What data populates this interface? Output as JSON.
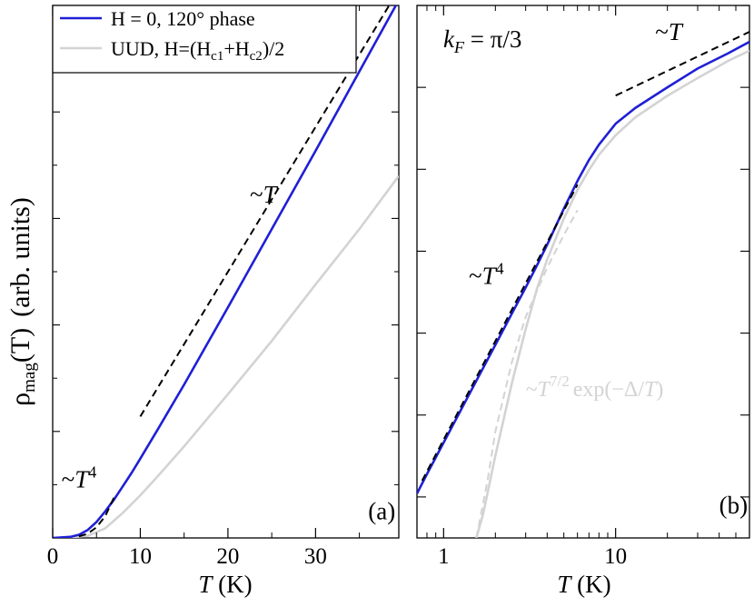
{
  "y_axis_label": {
    "symbol": "ρ",
    "sub": "mag",
    "arg": "(T)",
    "units": "(arb. units)"
  },
  "chart_data": [
    {
      "panel": "(a)",
      "type": "line",
      "xscale": "linear",
      "yscale": "linear",
      "xlim": [
        0,
        39.5
      ],
      "ylim": [
        0,
        1
      ],
      "xlabel": "T (K)",
      "xticks": [
        0,
        10,
        20,
        30
      ],
      "xtick_labels": [
        "0",
        "10",
        "20",
        "30"
      ],
      "legend": {
        "placement": "top-left",
        "entries": [
          {
            "label": "H = 0, 120° phase",
            "color": "#1f1fd6"
          },
          {
            "label": "UUD, H=(Hc1+Hc2)/2",
            "color": "#d3d3d3"
          }
        ]
      },
      "series": [
        {
          "name": "H = 0, 120° phase",
          "color": "#1f1fd6",
          "x": [
            0,
            2,
            3,
            4,
            5,
            6,
            7,
            8,
            9,
            10,
            12,
            15,
            20,
            25,
            30,
            35,
            39.5
          ],
          "y": [
            0,
            0.002,
            0.006,
            0.015,
            0.03,
            0.05,
            0.072,
            0.097,
            0.122,
            0.149,
            0.204,
            0.288,
            0.433,
            0.58,
            0.727,
            0.876,
            1.01
          ]
        },
        {
          "name": "UUD, H=(Hc1+Hc2)/2",
          "color": "#d3d3d3",
          "x": [
            0,
            2,
            4,
            6,
            8,
            10,
            12,
            15,
            20,
            25,
            30,
            35,
            39.5
          ],
          "y": [
            0,
            0.001,
            0.004,
            0.018,
            0.047,
            0.08,
            0.116,
            0.172,
            0.27,
            0.37,
            0.476,
            0.58,
            0.68
          ]
        },
        {
          "name": "~T guide",
          "color": "#000000",
          "dash": true,
          "x": [
            10,
            39.5
          ],
          "y": [
            0.228,
            1.03
          ]
        },
        {
          "name": "~T^4 guide",
          "color": "#000000",
          "dash": true,
          "x": [
            3,
            4,
            5,
            6,
            7
          ],
          "y": [
            0.003,
            0.008,
            0.02,
            0.041,
            0.076
          ]
        }
      ],
      "annotations": [
        {
          "text": "~T",
          "at_x": 22.5,
          "at_y": 0.63
        },
        {
          "text": "~T⁴",
          "at_x": 1.0,
          "at_y": 0.095
        },
        {
          "text": "(a)",
          "at_x": 36,
          "at_y": 0.035
        }
      ]
    },
    {
      "panel": "(b)",
      "type": "line",
      "xscale": "log",
      "yscale": "log",
      "xlim": [
        0.7,
        60
      ],
      "ylim": [
        3.16e-05,
        100
      ],
      "xlabel": "T (K)",
      "xticks": [
        1,
        10
      ],
      "xtick_labels": [
        "1",
        "10"
      ],
      "title": "k_F = π/3",
      "series": [
        {
          "name": "H = 0, 120° phase",
          "color": "#1f1fd6",
          "x": [
            0.7,
            0.8,
            1,
            1.5,
            2,
            2.5,
            3,
            3.5,
            4,
            5,
            6,
            7,
            8,
            10,
            13,
            20,
            30,
            45,
            60
          ],
          "y": [
            0.00011,
            0.00019,
            0.00046,
            0.0023,
            0.0072,
            0.0175,
            0.036,
            0.068,
            0.12,
            0.33,
            0.72,
            1.3,
            2.0,
            3.6,
            5.6,
            10,
            17,
            26,
            36
          ]
        },
        {
          "name": "UUD, H=(Hc1+Hc2)/2",
          "color": "#d3d3d3",
          "x": [
            1.55,
            1.7,
            2,
            2.5,
            3,
            3.5,
            4,
            5,
            6,
            7,
            8,
            10,
            13,
            20,
            30,
            45,
            60
          ],
          "y": [
            3.16e-05,
            6.3e-05,
            0.00032,
            0.0025,
            0.0112,
            0.0355,
            0.079,
            0.25,
            0.56,
            0.98,
            1.5,
            2.6,
            4.3,
            7.9,
            13,
            21,
            28
          ]
        },
        {
          "name": "~T guide",
          "color": "#000000",
          "dash": true,
          "x": [
            10,
            60
          ],
          "y": [
            7.94,
            47.6
          ]
        },
        {
          "name": "~T^4 guide",
          "color": "#000000",
          "dash": true,
          "x": [
            0.75,
            6
          ],
          "y": [
            0.000158,
            0.65
          ]
        },
        {
          "name": "~T^7/2 exp(-Δ/T) guide",
          "color": "#d3d3d3",
          "dash": true,
          "x": [
            1.55,
            1.8,
            2,
            2.5,
            3,
            4,
            5,
            6
          ],
          "y": [
            3.16e-05,
            0.000158,
            0.00063,
            0.0045,
            0.0158,
            0.063,
            0.158,
            0.316
          ]
        }
      ],
      "annotations": [
        {
          "text": "~T",
          "at_x": 17,
          "at_y": 38
        },
        {
          "text": "~T⁴",
          "at_x": 1.4,
          "at_y": 0.04
        },
        {
          "text": "~T^7/2 exp(−Δ/T)",
          "at_x": 3,
          "at_y": 0.0017
        },
        {
          "text": "(b)",
          "at_x": 40,
          "at_y": 6.3e-05
        }
      ]
    }
  ]
}
